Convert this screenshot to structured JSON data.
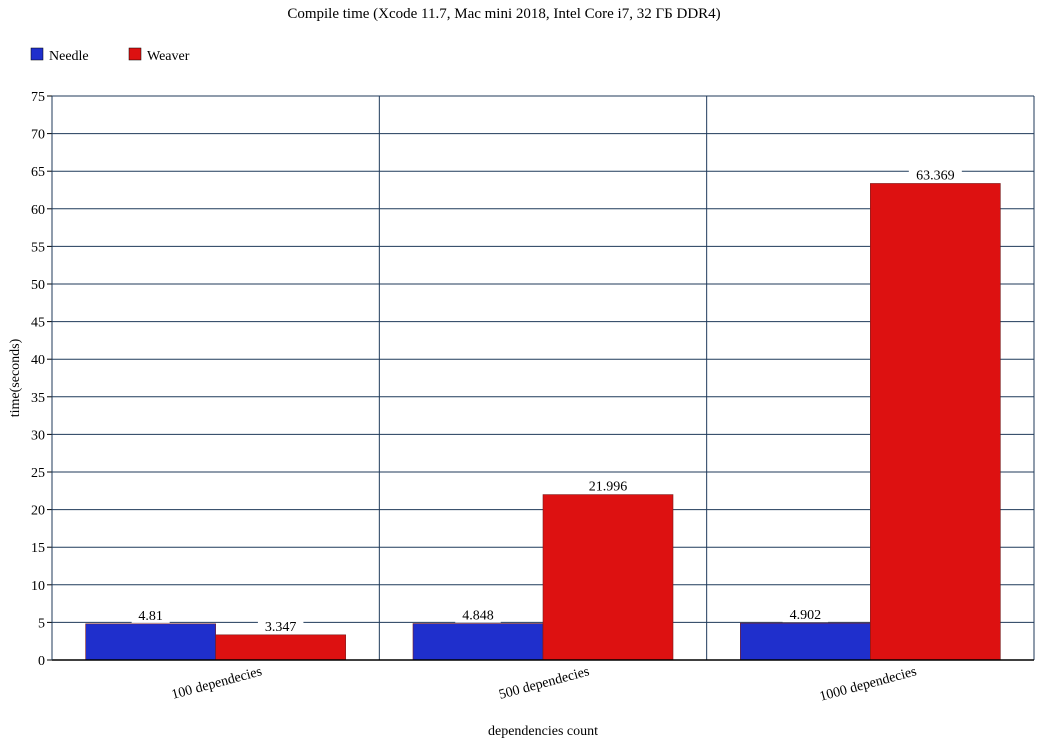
{
  "chart_data": {
    "type": "bar",
    "title": "Compile time (Xcode 11.7, Mac mini 2018, Intel Core i7, 32 ГБ DDR4)",
    "xlabel": "dependencies count",
    "ylabel": "time(seconds)",
    "ylim": [
      0,
      75
    ],
    "yticks": [
      0,
      5,
      10,
      15,
      20,
      25,
      30,
      35,
      40,
      45,
      50,
      55,
      60,
      65,
      70,
      75
    ],
    "categories": [
      "100 dependecies",
      "500 dependecies",
      "1000 dependecies"
    ],
    "series": [
      {
        "name": "Needle",
        "values": [
          4.81,
          4.848,
          4.902
        ],
        "labels": [
          "4.81",
          "4.848",
          "4.902"
        ],
        "color": "#1f2fcc"
      },
      {
        "name": "Weaver",
        "values": [
          3.347,
          21.996,
          63.369
        ],
        "labels": [
          "3.347",
          "21.996",
          "63.369"
        ],
        "color": "#dd1111"
      }
    ],
    "grid": true,
    "legend_position": "top-left"
  }
}
